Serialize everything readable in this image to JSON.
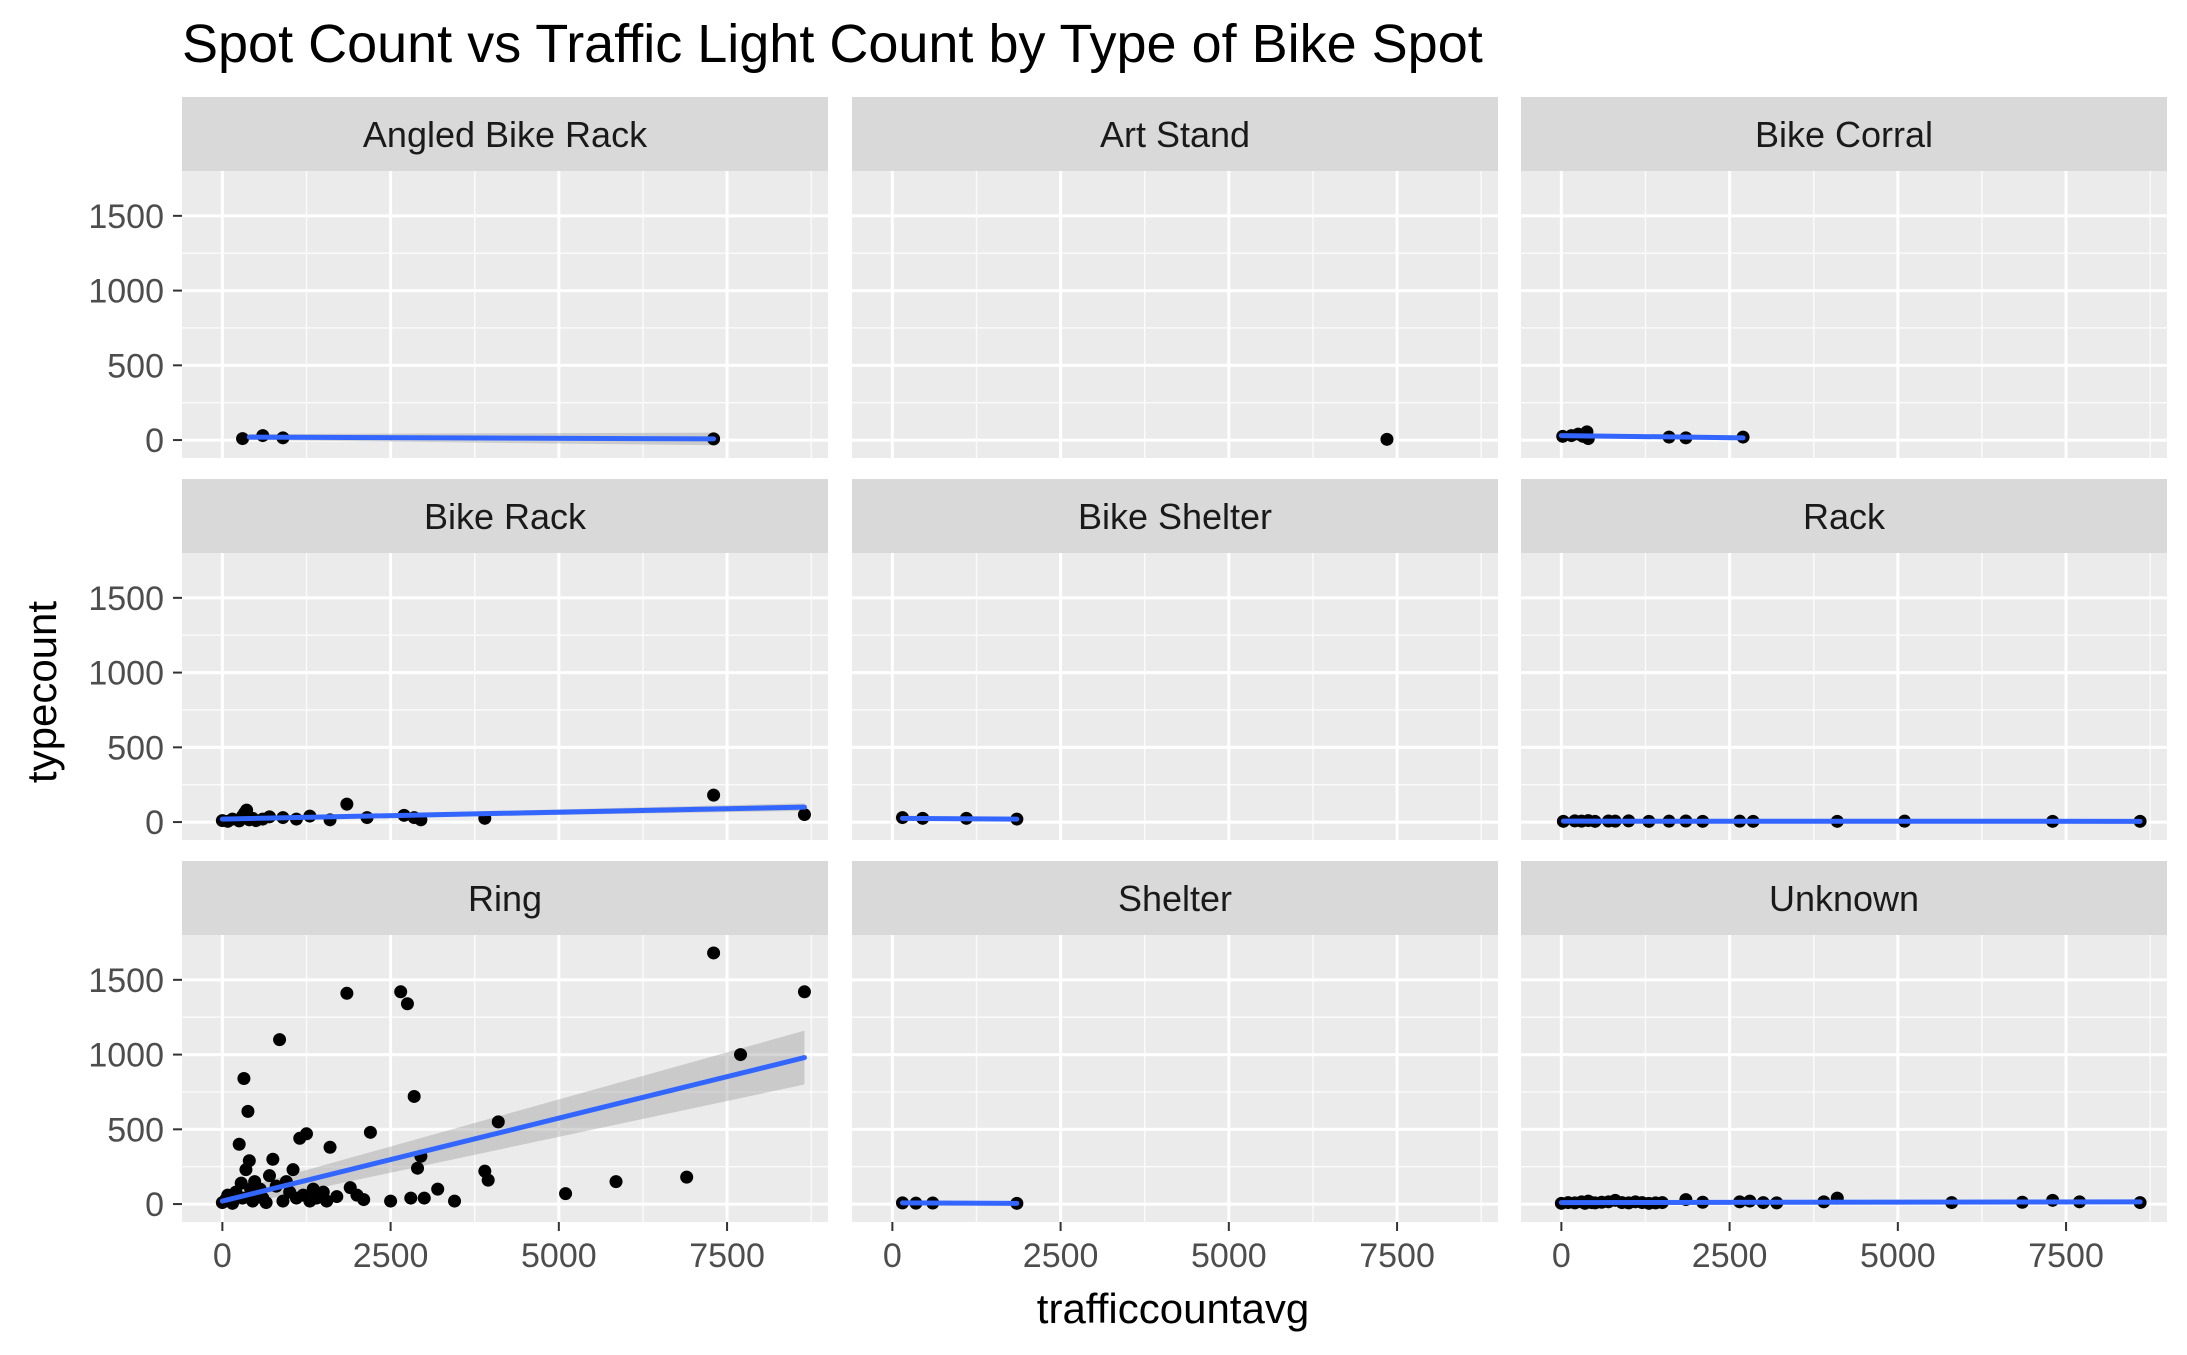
{
  "colors": {
    "panel_background": "#ebebeb",
    "strip_background": "#d9d9d9",
    "grid_major": "#ffffff",
    "points": "#000000",
    "smooth_line": "#3366ff",
    "confidence_band": "#999999"
  },
  "chart_data": {
    "type": "scatter",
    "title": "Spot Count vs Traffic Light Count by Type of Bike Spot",
    "xlabel": "trafficcountavg",
    "ylabel": "typecount",
    "xlim": [
      -600,
      9000
    ],
    "ylim": [
      -120,
      1800
    ],
    "x_ticks": [
      0,
      2500,
      5000,
      7500
    ],
    "x_tick_labels": [
      "0",
      "2500",
      "5000",
      "7500"
    ],
    "y_ticks": [
      0,
      500,
      1000,
      1500
    ],
    "y_tick_labels": [
      "0",
      "500",
      "1000",
      "1500"
    ],
    "grid": true,
    "smooth": "lm with confidence band",
    "facets": [
      {
        "name": "Angled Bike Rack",
        "points": [
          [
            300,
            10
          ],
          [
            600,
            30
          ],
          [
            900,
            15
          ],
          [
            7300,
            8
          ]
        ],
        "fit": [
          [
            400,
            20
          ],
          [
            7300,
            8
          ]
        ],
        "band": [
          [
            400,
            40,
            0
          ],
          [
            7300,
            50,
            -35
          ]
        ]
      },
      {
        "name": "Art Stand",
        "points": [
          [
            7350,
            5
          ]
        ],
        "fit": null,
        "band": null
      },
      {
        "name": "Bike Corral",
        "points": [
          [
            20,
            25
          ],
          [
            150,
            30
          ],
          [
            250,
            40
          ],
          [
            320,
            25
          ],
          [
            380,
            55
          ],
          [
            400,
            10
          ],
          [
            1600,
            20
          ],
          [
            1850,
            15
          ],
          [
            2700,
            20
          ]
        ],
        "fit": [
          [
            0,
            30
          ],
          [
            2700,
            15
          ]
        ],
        "band": null
      },
      {
        "name": "Bike Rack",
        "points": [
          [
            0,
            10
          ],
          [
            80,
            5
          ],
          [
            150,
            20
          ],
          [
            250,
            8
          ],
          [
            300,
            40
          ],
          [
            330,
            60
          ],
          [
            360,
            80
          ],
          [
            400,
            15
          ],
          [
            450,
            25
          ],
          [
            500,
            10
          ],
          [
            600,
            20
          ],
          [
            700,
            35
          ],
          [
            900,
            30
          ],
          [
            1100,
            20
          ],
          [
            1300,
            40
          ],
          [
            1600,
            15
          ],
          [
            1850,
            120
          ],
          [
            2150,
            30
          ],
          [
            2700,
            45
          ],
          [
            2850,
            30
          ],
          [
            2950,
            15
          ],
          [
            3900,
            25
          ],
          [
            7300,
            180
          ],
          [
            8650,
            50
          ]
        ],
        "fit": [
          [
            0,
            20
          ],
          [
            8650,
            100
          ]
        ],
        "band": [
          [
            0,
            30,
            10
          ],
          [
            8650,
            125,
            75
          ]
        ]
      },
      {
        "name": "Bike Shelter",
        "points": [
          [
            150,
            30
          ],
          [
            450,
            25
          ],
          [
            1100,
            25
          ],
          [
            1850,
            20
          ]
        ],
        "fit": [
          [
            150,
            25
          ],
          [
            1850,
            20
          ]
        ],
        "band": null
      },
      {
        "name": "Rack",
        "points": [
          [
            30,
            5
          ],
          [
            200,
            8
          ],
          [
            300,
            6
          ],
          [
            400,
            10
          ],
          [
            500,
            5
          ],
          [
            700,
            7
          ],
          [
            800,
            6
          ],
          [
            1000,
            8
          ],
          [
            1300,
            5
          ],
          [
            1600,
            6
          ],
          [
            1850,
            7
          ],
          [
            2100,
            5
          ],
          [
            2650,
            6
          ],
          [
            2850,
            5
          ],
          [
            4100,
            5
          ],
          [
            5100,
            6
          ],
          [
            7300,
            5
          ],
          [
            8600,
            5
          ]
        ],
        "fit": [
          [
            30,
            6
          ],
          [
            8600,
            5
          ]
        ],
        "band": null
      },
      {
        "name": "Ring",
        "points": [
          [
            0,
            10
          ],
          [
            50,
            30
          ],
          [
            80,
            60
          ],
          [
            120,
            20
          ],
          [
            150,
            5
          ],
          [
            200,
            80
          ],
          [
            250,
            400
          ],
          [
            280,
            140
          ],
          [
            300,
            40
          ],
          [
            320,
            840
          ],
          [
            350,
            230
          ],
          [
            380,
            620
          ],
          [
            400,
            290
          ],
          [
            420,
            100
          ],
          [
            450,
            20
          ],
          [
            480,
            150
          ],
          [
            520,
            60
          ],
          [
            560,
            100
          ],
          [
            600,
            40
          ],
          [
            650,
            10
          ],
          [
            700,
            190
          ],
          [
            750,
            300
          ],
          [
            800,
            120
          ],
          [
            850,
            1100
          ],
          [
            900,
            20
          ],
          [
            950,
            150
          ],
          [
            1000,
            80
          ],
          [
            1050,
            230
          ],
          [
            1100,
            40
          ],
          [
            1150,
            440
          ],
          [
            1200,
            60
          ],
          [
            1250,
            470
          ],
          [
            1300,
            20
          ],
          [
            1350,
            100
          ],
          [
            1400,
            40
          ],
          [
            1500,
            80
          ],
          [
            1550,
            20
          ],
          [
            1600,
            380
          ],
          [
            1700,
            50
          ],
          [
            1850,
            1410
          ],
          [
            1900,
            110
          ],
          [
            2000,
            60
          ],
          [
            2100,
            30
          ],
          [
            2200,
            480
          ],
          [
            2500,
            20
          ],
          [
            2650,
            1420
          ],
          [
            2750,
            1340
          ],
          [
            2800,
            40
          ],
          [
            2850,
            720
          ],
          [
            2900,
            240
          ],
          [
            2950,
            320
          ],
          [
            3000,
            40
          ],
          [
            3200,
            100
          ],
          [
            3450,
            20
          ],
          [
            3900,
            220
          ],
          [
            3950,
            160
          ],
          [
            4100,
            550
          ],
          [
            5100,
            70
          ],
          [
            5850,
            150
          ],
          [
            6900,
            180
          ],
          [
            7300,
            1680
          ],
          [
            7700,
            1000
          ],
          [
            8650,
            1420
          ]
        ],
        "fit": [
          [
            0,
            20
          ],
          [
            8650,
            980
          ]
        ],
        "band": [
          [
            0,
            70,
            -30
          ],
          [
            8650,
            1160,
            800
          ]
        ]
      },
      {
        "name": "Shelter",
        "points": [
          [
            150,
            8
          ],
          [
            350,
            6
          ],
          [
            600,
            7
          ],
          [
            1850,
            5
          ]
        ],
        "fit": [
          [
            150,
            8
          ],
          [
            1850,
            5
          ]
        ],
        "band": null
      },
      {
        "name": "Unknown",
        "points": [
          [
            0,
            5
          ],
          [
            100,
            10
          ],
          [
            200,
            8
          ],
          [
            300,
            15
          ],
          [
            350,
            5
          ],
          [
            400,
            20
          ],
          [
            450,
            10
          ],
          [
            500,
            8
          ],
          [
            600,
            12
          ],
          [
            700,
            15
          ],
          [
            800,
            25
          ],
          [
            900,
            10
          ],
          [
            1000,
            8
          ],
          [
            1100,
            15
          ],
          [
            1200,
            10
          ],
          [
            1300,
            5
          ],
          [
            1400,
            8
          ],
          [
            1500,
            10
          ],
          [
            1850,
            30
          ],
          [
            2100,
            12
          ],
          [
            2650,
            15
          ],
          [
            2800,
            20
          ],
          [
            3000,
            10
          ],
          [
            3200,
            8
          ],
          [
            3900,
            15
          ],
          [
            4100,
            40
          ],
          [
            5800,
            10
          ],
          [
            6850,
            12
          ],
          [
            7300,
            25
          ],
          [
            7700,
            15
          ],
          [
            8600,
            10
          ]
        ],
        "fit": [
          [
            0,
            10
          ],
          [
            8600,
            15
          ]
        ],
        "band": null
      }
    ]
  }
}
